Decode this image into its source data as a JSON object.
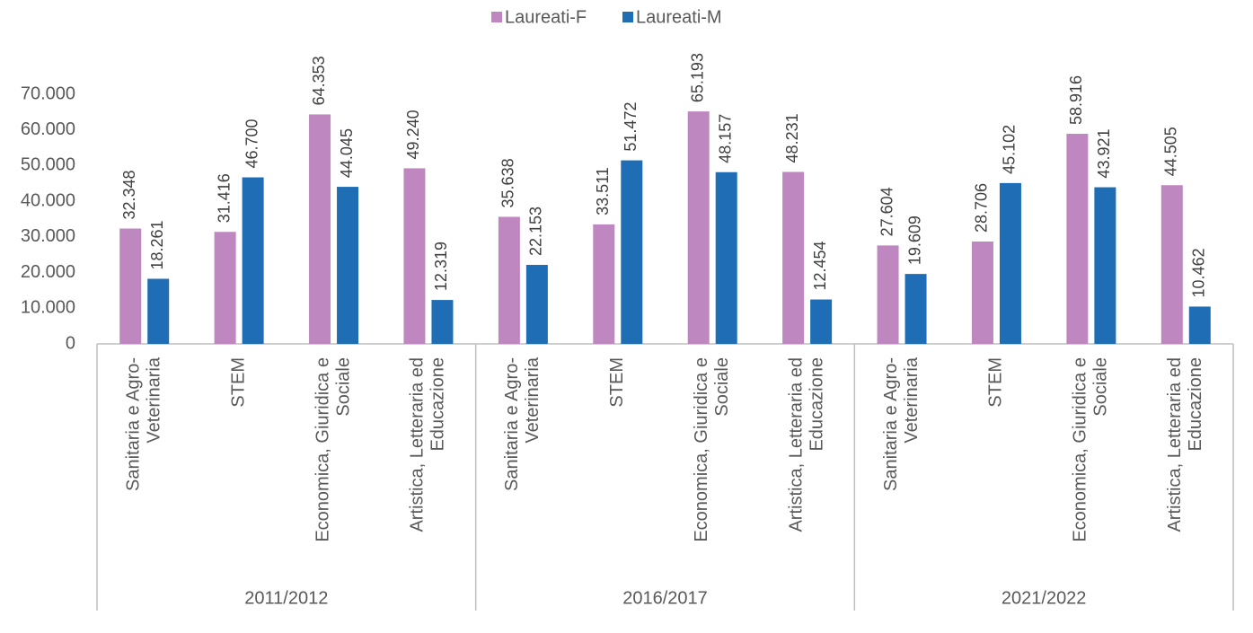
{
  "chart_data": {
    "type": "bar",
    "groups": [
      "2011/2012",
      "2016/2017",
      "2021/2022"
    ],
    "categories": [
      [
        "Sanitaria e Agro-",
        "Veterinaria"
      ],
      [
        "STEM"
      ],
      [
        "Economica, Giuridica e",
        "Sociale"
      ],
      [
        "Artistica, Letteraria ed",
        "Educazione"
      ],
      [
        "Sanitaria e Agro-",
        "Veterinaria"
      ],
      [
        "STEM"
      ],
      [
        "Economica, Giuridica e",
        "Sociale"
      ],
      [
        "Artistica, Letteraria ed",
        "Educazione"
      ],
      [
        "Sanitaria e Agro-",
        "Veterinaria"
      ],
      [
        "STEM"
      ],
      [
        "Economica, Giuridica e",
        "Sociale"
      ],
      [
        "Artistica, Letteraria ed",
        "Educazione"
      ]
    ],
    "series": [
      {
        "name": "Laureati-F",
        "color": "#bf87c0",
        "values": [
          32348,
          31416,
          64353,
          49240,
          35638,
          33511,
          65193,
          48231,
          27604,
          28706,
          58916,
          44505
        ],
        "value_labels": [
          "32.348",
          "31.416",
          "64.353",
          "49.240",
          "35.638",
          "33.511",
          "65.193",
          "48.231",
          "27.604",
          "28.706",
          "58.916",
          "44.505"
        ]
      },
      {
        "name": "Laureati-M",
        "color": "#1f6eb5",
        "values": [
          18261,
          46700,
          44045,
          12319,
          22153,
          51472,
          48157,
          12454,
          19609,
          45102,
          43921,
          10462
        ],
        "value_labels": [
          "18.261",
          "46.700",
          "44.045",
          "12.319",
          "22.153",
          "51.472",
          "48.157",
          "12.454",
          "19.609",
          "45.102",
          "43.921",
          "10.462"
        ]
      }
    ],
    "ylim": [
      0,
      70000
    ],
    "yticks": [
      0,
      {
        "value": 10000,
        "label": "10.000"
      },
      {
        "value": 20000,
        "label": "20.000"
      },
      {
        "value": 30000,
        "label": "30.000"
      },
      {
        "value": 40000,
        "label": "40.000"
      },
      {
        "value": 50000,
        "label": "50.000"
      },
      {
        "value": 60000,
        "label": "60.000"
      },
      {
        "value": 70000,
        "label": "70.000"
      }
    ],
    "legend": "top"
  }
}
